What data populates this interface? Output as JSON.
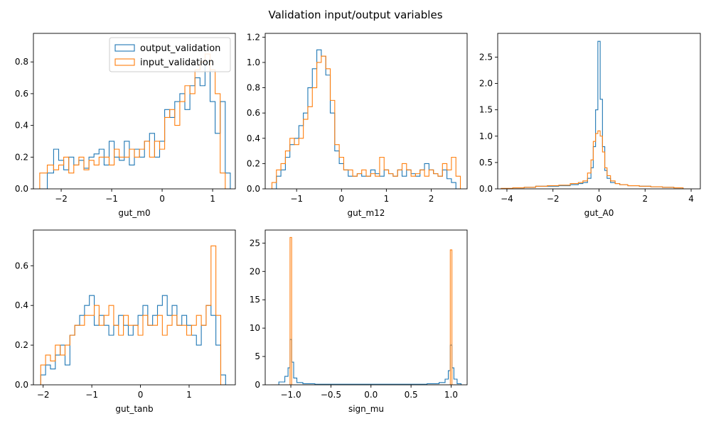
{
  "figure": {
    "title": "Validation input/output variables"
  },
  "legend": {
    "placement": "top-right of first subplot",
    "entries": [
      {
        "name": "output_validation",
        "color": "#1f77b4"
      },
      {
        "name": "input_validation",
        "color": "#ff7f0e"
      }
    ]
  },
  "chart_data": [
    {
      "type": "histogram",
      "xlabel": "gut_m0",
      "xlim": [
        -2.55,
        1.45
      ],
      "ylim": [
        0,
        0.98
      ],
      "xticks": [
        -2,
        -1,
        0,
        1
      ],
      "yticks": [
        0.0,
        0.2,
        0.4,
        0.6,
        0.8
      ],
      "has_legend": true,
      "series": [
        {
          "name": "output_validation",
          "color": "#1f77b4",
          "x": [
            -2.35,
            -2.2,
            -2.1,
            -2.0,
            -1.9,
            -1.8,
            -1.7,
            -1.6,
            -1.5,
            -1.4,
            -1.3,
            -1.2,
            -1.1,
            -1.0,
            -0.9,
            -0.8,
            -0.7,
            -0.6,
            -0.5,
            -0.4,
            -0.3,
            -0.2,
            -0.1,
            0.0,
            0.1,
            0.2,
            0.3,
            0.4,
            0.5,
            0.6,
            0.7,
            0.8,
            0.9,
            1.0,
            1.1,
            1.2,
            1.3
          ],
          "y": [
            0.0,
            0.1,
            0.25,
            0.18,
            0.12,
            0.2,
            0.15,
            0.18,
            0.13,
            0.2,
            0.22,
            0.25,
            0.15,
            0.3,
            0.2,
            0.18,
            0.3,
            0.15,
            0.25,
            0.2,
            0.3,
            0.35,
            0.2,
            0.3,
            0.5,
            0.45,
            0.55,
            0.6,
            0.5,
            0.65,
            0.7,
            0.65,
            0.8,
            0.55,
            0.35,
            0.55,
            0.1
          ]
        },
        {
          "name": "input_validation",
          "color": "#ff7f0e",
          "x": [
            -2.35,
            -2.2,
            -2.1,
            -2.0,
            -1.9,
            -1.8,
            -1.7,
            -1.6,
            -1.5,
            -1.4,
            -1.3,
            -1.2,
            -1.1,
            -1.0,
            -0.9,
            -0.8,
            -0.7,
            -0.6,
            -0.5,
            -0.4,
            -0.3,
            -0.2,
            -0.1,
            0.0,
            0.1,
            0.2,
            0.3,
            0.4,
            0.5,
            0.6,
            0.7,
            0.8,
            0.9,
            1.0,
            1.1,
            1.2,
            1.3
          ],
          "y": [
            0.1,
            0.15,
            0.12,
            0.15,
            0.2,
            0.1,
            0.15,
            0.2,
            0.12,
            0.18,
            0.15,
            0.2,
            0.2,
            0.15,
            0.25,
            0.2,
            0.2,
            0.25,
            0.2,
            0.25,
            0.3,
            0.2,
            0.3,
            0.25,
            0.45,
            0.5,
            0.4,
            0.55,
            0.65,
            0.6,
            0.75,
            0.8,
            0.85,
            0.75,
            0.6,
            0.1,
            0.0
          ]
        }
      ]
    },
    {
      "type": "histogram",
      "xlabel": "gut_m12",
      "xlim": [
        -1.7,
        2.8
      ],
      "ylim": [
        0,
        1.23
      ],
      "xticks": [
        -1,
        0,
        1,
        2
      ],
      "yticks": [
        0.0,
        0.2,
        0.4,
        0.6,
        0.8,
        1.0,
        1.2
      ],
      "has_legend": false,
      "series": [
        {
          "name": "output_validation",
          "color": "#1f77b4",
          "x": [
            -1.5,
            -1.4,
            -1.3,
            -1.2,
            -1.1,
            -1.0,
            -0.9,
            -0.8,
            -0.7,
            -0.6,
            -0.5,
            -0.4,
            -0.3,
            -0.2,
            -0.1,
            0.0,
            0.1,
            0.2,
            0.3,
            0.4,
            0.5,
            0.6,
            0.7,
            0.8,
            0.9,
            1.0,
            1.1,
            1.2,
            1.3,
            1.4,
            1.5,
            1.6,
            1.7,
            1.8,
            1.9,
            2.0,
            2.1,
            2.2,
            2.3,
            2.4,
            2.5,
            2.6
          ],
          "y": [
            0.0,
            0.1,
            0.15,
            0.25,
            0.35,
            0.4,
            0.5,
            0.6,
            0.8,
            0.95,
            1.1,
            1.05,
            0.9,
            0.6,
            0.3,
            0.2,
            0.15,
            0.1,
            0.1,
            0.12,
            0.1,
            0.1,
            0.15,
            0.12,
            0.1,
            0.15,
            0.12,
            0.1,
            0.15,
            0.1,
            0.15,
            0.12,
            0.1,
            0.15,
            0.2,
            0.15,
            0.12,
            0.1,
            0.15,
            0.08,
            0.05,
            0.0
          ]
        },
        {
          "name": "input_validation",
          "color": "#ff7f0e",
          "x": [
            -1.5,
            -1.4,
            -1.3,
            -1.2,
            -1.1,
            -1.0,
            -0.9,
            -0.8,
            -0.7,
            -0.6,
            -0.5,
            -0.4,
            -0.3,
            -0.2,
            -0.1,
            0.0,
            0.1,
            0.2,
            0.3,
            0.4,
            0.5,
            0.6,
            0.7,
            0.8,
            0.9,
            1.0,
            1.1,
            1.2,
            1.3,
            1.4,
            1.5,
            1.6,
            1.7,
            1.8,
            1.9,
            2.0,
            2.1,
            2.2,
            2.3,
            2.4,
            2.5,
            2.6
          ],
          "y": [
            0.05,
            0.15,
            0.2,
            0.3,
            0.4,
            0.35,
            0.4,
            0.55,
            0.65,
            0.8,
            1.0,
            1.05,
            0.95,
            0.7,
            0.35,
            0.25,
            0.15,
            0.15,
            0.1,
            0.12,
            0.15,
            0.1,
            0.12,
            0.1,
            0.25,
            0.15,
            0.12,
            0.1,
            0.15,
            0.2,
            0.15,
            0.1,
            0.12,
            0.15,
            0.1,
            0.15,
            0.12,
            0.1,
            0.2,
            0.15,
            0.25,
            0.1
          ]
        }
      ]
    },
    {
      "type": "histogram",
      "xlabel": "gut_A0",
      "xlim": [
        -4.4,
        4.4
      ],
      "ylim": [
        0,
        2.95
      ],
      "xticks": [
        -4,
        -2,
        0,
        2,
        4
      ],
      "yticks": [
        0.0,
        0.5,
        1.0,
        1.5,
        2.0,
        2.5
      ],
      "has_legend": false,
      "series": [
        {
          "name": "output_validation",
          "color": "#1f77b4",
          "x": [
            -4.0,
            -3.5,
            -3.0,
            -2.5,
            -2.0,
            -1.5,
            -1.0,
            -0.8,
            -0.6,
            -0.4,
            -0.3,
            -0.2,
            -0.1,
            0.0,
            0.1,
            0.2,
            0.3,
            0.4,
            0.6,
            0.8,
            1.0,
            1.5,
            2.0,
            2.5,
            3.0,
            3.5,
            3.8
          ],
          "y": [
            0.0,
            0.02,
            0.03,
            0.05,
            0.05,
            0.06,
            0.08,
            0.1,
            0.12,
            0.2,
            0.4,
            0.8,
            1.5,
            2.8,
            1.7,
            0.8,
            0.35,
            0.2,
            0.12,
            0.1,
            0.08,
            0.06,
            0.05,
            0.04,
            0.03,
            0.02,
            0.0
          ]
        },
        {
          "name": "input_validation",
          "color": "#ff7f0e",
          "x": [
            -4.0,
            -3.5,
            -3.0,
            -2.5,
            -2.0,
            -1.5,
            -1.0,
            -0.8,
            -0.6,
            -0.4,
            -0.3,
            -0.2,
            -0.1,
            0.0,
            0.1,
            0.2,
            0.3,
            0.4,
            0.6,
            0.8,
            1.0,
            1.5,
            2.0,
            2.5,
            3.0,
            3.5,
            3.8
          ],
          "y": [
            0.01,
            0.02,
            0.03,
            0.05,
            0.06,
            0.07,
            0.1,
            0.12,
            0.15,
            0.3,
            0.55,
            0.9,
            1.05,
            1.1,
            1.0,
            0.7,
            0.4,
            0.25,
            0.15,
            0.1,
            0.08,
            0.06,
            0.05,
            0.04,
            0.03,
            0.02,
            0.0
          ]
        }
      ]
    },
    {
      "type": "histogram",
      "xlabel": "gut_tanb",
      "xlim": [
        -2.2,
        1.95
      ],
      "ylim": [
        0,
        0.78
      ],
      "xticks": [
        -2,
        -1,
        0,
        1
      ],
      "yticks": [
        0.0,
        0.2,
        0.4,
        0.6
      ],
      "has_legend": false,
      "series": [
        {
          "name": "output_validation",
          "color": "#1f77b4",
          "x": [
            -2.0,
            -1.9,
            -1.8,
            -1.7,
            -1.6,
            -1.5,
            -1.4,
            -1.3,
            -1.2,
            -1.1,
            -1.0,
            -0.9,
            -0.8,
            -0.7,
            -0.6,
            -0.5,
            -0.4,
            -0.3,
            -0.2,
            -0.1,
            0.0,
            0.1,
            0.2,
            0.3,
            0.4,
            0.5,
            0.6,
            0.7,
            0.8,
            0.9,
            1.0,
            1.1,
            1.2,
            1.3,
            1.4,
            1.5,
            1.6,
            1.7
          ],
          "y": [
            0.05,
            0.1,
            0.08,
            0.15,
            0.2,
            0.1,
            0.25,
            0.3,
            0.35,
            0.4,
            0.45,
            0.3,
            0.35,
            0.3,
            0.25,
            0.3,
            0.35,
            0.3,
            0.25,
            0.3,
            0.35,
            0.4,
            0.3,
            0.35,
            0.4,
            0.45,
            0.35,
            0.4,
            0.3,
            0.35,
            0.3,
            0.25,
            0.2,
            0.3,
            0.4,
            0.35,
            0.2,
            0.05
          ]
        },
        {
          "name": "input_validation",
          "color": "#ff7f0e",
          "x": [
            -2.0,
            -1.9,
            -1.8,
            -1.7,
            -1.6,
            -1.5,
            -1.4,
            -1.3,
            -1.2,
            -1.1,
            -1.0,
            -0.9,
            -0.8,
            -0.7,
            -0.6,
            -0.5,
            -0.4,
            -0.3,
            -0.2,
            -0.1,
            0.0,
            0.1,
            0.2,
            0.3,
            0.4,
            0.5,
            0.6,
            0.7,
            0.8,
            0.9,
            1.0,
            1.1,
            1.2,
            1.3,
            1.4,
            1.5,
            1.6,
            1.7
          ],
          "y": [
            0.1,
            0.15,
            0.12,
            0.2,
            0.15,
            0.2,
            0.25,
            0.3,
            0.3,
            0.35,
            0.35,
            0.4,
            0.3,
            0.35,
            0.4,
            0.3,
            0.25,
            0.35,
            0.3,
            0.3,
            0.25,
            0.35,
            0.3,
            0.3,
            0.35,
            0.25,
            0.3,
            0.35,
            0.3,
            0.3,
            0.25,
            0.3,
            0.35,
            0.3,
            0.4,
            0.7,
            0.35,
            0.0
          ]
        }
      ]
    },
    {
      "type": "histogram",
      "xlabel": "sign_mu",
      "xlim": [
        -1.32,
        1.2
      ],
      "ylim": [
        0,
        27.3
      ],
      "xticks": [
        -1.0,
        -0.5,
        0.0,
        0.5,
        1.0
      ],
      "yticks": [
        0,
        5,
        10,
        15,
        20,
        25
      ],
      "has_legend": false,
      "series": [
        {
          "name": "output_validation",
          "color": "#1f77b4",
          "x": [
            -1.2,
            -1.1,
            -1.05,
            -1.02,
            -1.0,
            -0.98,
            -0.95,
            -0.9,
            -0.8,
            -0.6,
            -0.4,
            -0.2,
            0.0,
            0.2,
            0.4,
            0.6,
            0.8,
            0.9,
            0.95,
            0.98,
            1.0,
            1.02,
            1.05,
            1.1
          ],
          "y": [
            0.0,
            0.5,
            1.5,
            3.0,
            8.0,
            4.0,
            1.2,
            0.4,
            0.2,
            0.1,
            0.1,
            0.1,
            0.1,
            0.1,
            0.1,
            0.1,
            0.2,
            0.4,
            1.0,
            2.5,
            7.0,
            3.0,
            1.0,
            0.2
          ]
        },
        {
          "name": "input_validation",
          "color": "#ff7f0e",
          "x": [
            -1.2,
            -1.1,
            -1.05,
            -1.02,
            -1.0,
            -0.98,
            -0.95,
            -0.9,
            -0.8,
            -0.6,
            -0.4,
            -0.2,
            0.0,
            0.2,
            0.4,
            0.6,
            0.8,
            0.9,
            0.95,
            0.98,
            1.0,
            1.02,
            1.05,
            1.1
          ],
          "y": [
            0.0,
            0.0,
            0.0,
            0.0,
            26.0,
            0.0,
            0.0,
            0.0,
            0.0,
            0.0,
            0.0,
            0.0,
            0.0,
            0.0,
            0.0,
            0.0,
            0.0,
            0.0,
            0.0,
            0.0,
            23.8,
            0.0,
            0.0,
            0.0
          ]
        }
      ]
    }
  ]
}
